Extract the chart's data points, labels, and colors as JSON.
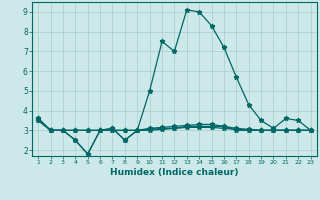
{
  "xlabel": "Humidex (Indice chaleur)",
  "bg_color": "#cce8e8",
  "grid_color": "#aacccc",
  "line_color": "#006666",
  "x_ticks": [
    1,
    2,
    3,
    4,
    5,
    6,
    7,
    8,
    9,
    10,
    11,
    12,
    13,
    14,
    15,
    16,
    17,
    18,
    19,
    20,
    21,
    22,
    23
  ],
  "ylim": [
    1.7,
    9.5
  ],
  "xlim": [
    0.5,
    23.5
  ],
  "yticks": [
    2,
    3,
    4,
    5,
    6,
    7,
    8,
    9
  ],
  "series": [
    [
      3.6,
      3.0,
      3.0,
      2.5,
      1.8,
      3.0,
      3.1,
      2.5,
      3.0,
      5.0,
      7.5,
      7.0,
      9.1,
      9.0,
      8.3,
      7.2,
      5.7,
      4.3,
      3.5,
      3.1,
      3.6,
      3.5,
      3.0
    ],
    [
      3.6,
      3.0,
      3.0,
      2.5,
      1.8,
      3.0,
      3.1,
      2.5,
      3.0,
      3.0,
      3.05,
      3.1,
      3.2,
      3.2,
      3.2,
      3.2,
      3.0,
      3.0,
      3.0,
      3.0,
      3.0,
      3.0,
      3.0
    ],
    [
      3.5,
      3.0,
      3.0,
      3.0,
      3.0,
      3.0,
      3.0,
      3.0,
      3.0,
      3.1,
      3.15,
      3.2,
      3.25,
      3.3,
      3.3,
      3.2,
      3.1,
      3.05,
      3.0,
      3.0,
      3.0,
      3.0,
      3.0
    ],
    [
      3.5,
      3.0,
      3.0,
      3.0,
      3.0,
      3.0,
      3.0,
      3.0,
      3.0,
      3.05,
      3.1,
      3.1,
      3.15,
      3.15,
      3.15,
      3.1,
      3.05,
      3.0,
      3.0,
      3.0,
      3.0,
      3.0,
      3.0
    ]
  ]
}
